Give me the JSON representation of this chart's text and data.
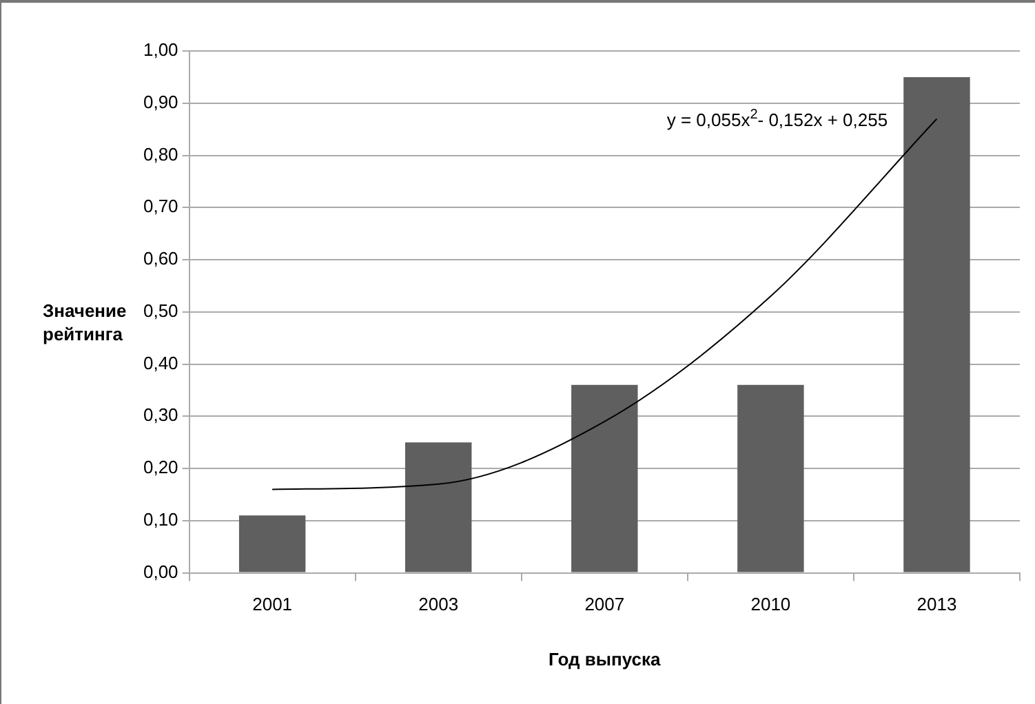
{
  "chart_data": {
    "type": "bar",
    "xlabel": "Год выпуска",
    "ylabel": "Значение рейтинга",
    "categories": [
      "2001",
      "2003",
      "2007",
      "2010",
      "2013"
    ],
    "series": [
      {
        "color": "#5f5f5f",
        "values": [
          0.11,
          0.25,
          0.36,
          0.36,
          0.95
        ]
      },
      {
        "type": "line",
        "color": "#000000",
        "values": [
          0.16,
          0.17,
          0.29,
          0.53,
          0.87
        ]
      }
    ],
    "ylim": [
      0,
      1
    ],
    "yticks": [
      {
        "value": 0,
        "label": "0,00"
      },
      {
        "value": 0.1,
        "label": "0,10"
      },
      {
        "value": 0.2,
        "label": "0,20"
      },
      {
        "value": 0.3,
        "label": "0,30"
      },
      {
        "value": 0.4,
        "label": "0,40"
      },
      {
        "value": 0.5,
        "label": "0,50"
      },
      {
        "value": 0.6,
        "label": "0,60"
      },
      {
        "value": 0.7,
        "label": "0,70"
      },
      {
        "value": 0.8,
        "label": "0,80"
      },
      {
        "value": 0.9,
        "label": "0,90"
      },
      {
        "value": 1,
        "label": "1,00"
      }
    ],
    "grid": "y",
    "legend": false,
    "annotations": [
      "y = 0,055x$^{2}$- 0,152x + 0,255"
    ]
  }
}
